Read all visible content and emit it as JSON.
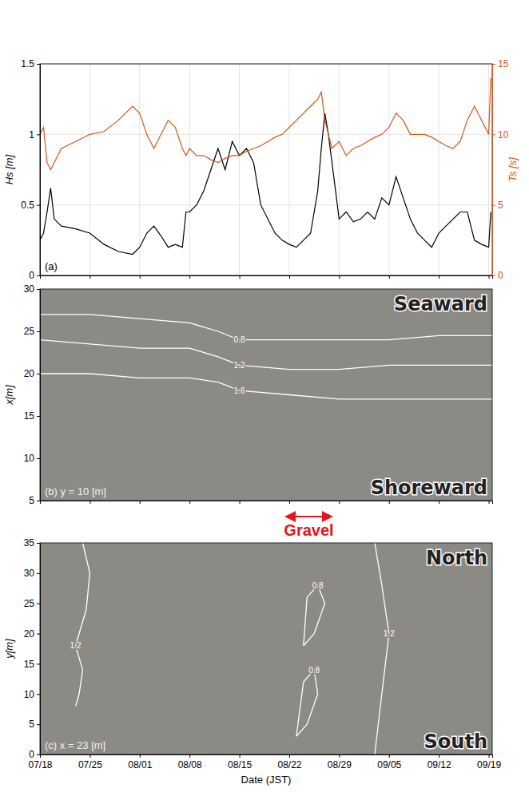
{
  "chart_data": [
    {
      "type": "line",
      "label": "(a)",
      "ylabel": "Hs [m]",
      "y2label": "Ts [s]",
      "xlim": [
        0,
        63.5
      ],
      "xticks": [
        0,
        7,
        14,
        21,
        28,
        35,
        42,
        49,
        56,
        63
      ],
      "ylim": [
        0,
        1.5
      ],
      "yticks": [
        0,
        0.5,
        1,
        1.5
      ],
      "y2lim": [
        0,
        15
      ],
      "y2ticks": [
        0,
        5,
        10,
        15
      ],
      "grid": true,
      "tick_labels": "y",
      "x": [
        0,
        0.5,
        1,
        1.5,
        2,
        3,
        5,
        7,
        9,
        11,
        13,
        14,
        15,
        16,
        17,
        18,
        19,
        20,
        20.5,
        21,
        22,
        23,
        24,
        25,
        26,
        27,
        28,
        29,
        30,
        31,
        32,
        33,
        34,
        35,
        36,
        37,
        38,
        39,
        39.5,
        40,
        40.5,
        41,
        42,
        43,
        44,
        45,
        46,
        47,
        48,
        49,
        50,
        51,
        52,
        53,
        54,
        55,
        56,
        57,
        58,
        59,
        60,
        61,
        62,
        63,
        63.3
      ],
      "series": [
        {
          "color": "#000000",
          "axis": "y",
          "values": [
            0.25,
            0.3,
            0.45,
            0.62,
            0.4,
            0.35,
            0.33,
            0.3,
            0.22,
            0.17,
            0.15,
            0.2,
            0.3,
            0.35,
            0.28,
            0.2,
            0.22,
            0.2,
            0.45,
            0.45,
            0.5,
            0.6,
            0.75,
            0.9,
            0.75,
            0.95,
            0.85,
            0.9,
            0.8,
            0.5,
            0.4,
            0.3,
            0.25,
            0.22,
            0.2,
            0.25,
            0.3,
            0.6,
            0.9,
            1.15,
            1.0,
            0.8,
            0.4,
            0.45,
            0.38,
            0.4,
            0.45,
            0.4,
            0.55,
            0.5,
            0.7,
            0.55,
            0.4,
            0.3,
            0.25,
            0.2,
            0.3,
            0.35,
            0.4,
            0.45,
            0.45,
            0.25,
            0.22,
            0.2,
            0.45
          ]
        },
        {
          "color": "#d95319",
          "axis": "y2",
          "values": [
            10,
            10.5,
            8,
            7.5,
            8,
            9,
            9.5,
            10,
            10.2,
            11,
            12,
            11.5,
            10,
            9,
            10,
            11,
            10.5,
            9,
            8.5,
            9,
            8.5,
            8.5,
            8.2,
            8,
            8.3,
            8.5,
            8.5,
            8.8,
            9,
            9.2,
            9.5,
            9.8,
            10,
            10.5,
            11,
            11.5,
            12,
            12.5,
            13,
            11,
            10,
            9,
            9.5,
            8.5,
            9,
            9.2,
            9.5,
            9.8,
            10,
            10.5,
            11.5,
            11,
            10,
            10,
            10,
            9.8,
            9.5,
            9.2,
            9,
            9.5,
            11,
            12,
            11,
            10,
            14
          ]
        }
      ]
    },
    {
      "type": "contour",
      "label": "(b) y = 10 [m]",
      "ylabel": "x[m]",
      "color": "#8c8a85",
      "xlim": [
        0,
        63.5
      ],
      "xticks": [
        0,
        7,
        14,
        21,
        28,
        35,
        42,
        49,
        56,
        63
      ],
      "ylim": [
        5,
        30
      ],
      "yticks": [
        5,
        10,
        15,
        20,
        25,
        30
      ],
      "grid": false,
      "tick_labels": "y",
      "annotations": [
        "Seaward",
        "Shoreward"
      ],
      "span": {
        "text": "Gravel",
        "x": [
          34.5,
          41
        ],
        "color": "#e8141c"
      },
      "series": [
        {
          "name": "0.8",
          "color": "#ffffff",
          "x": [
            0,
            7,
            14,
            21,
            25,
            28,
            35,
            42,
            49,
            56,
            63.5
          ],
          "values": [
            27,
            27,
            26.5,
            26,
            25,
            24,
            24,
            24,
            24,
            24.5,
            24.5
          ]
        },
        {
          "name": "1.2",
          "color": "#ffffff",
          "x": [
            0,
            7,
            14,
            21,
            25,
            28,
            35,
            42,
            49,
            56,
            63.5
          ],
          "values": [
            24,
            23.5,
            23,
            23,
            22,
            21,
            20.5,
            20.5,
            21,
            21,
            21
          ]
        },
        {
          "name": "1.6",
          "color": "#ffffff",
          "x": [
            0,
            7,
            14,
            21,
            25,
            28,
            35,
            42,
            49,
            56,
            63.5
          ],
          "values": [
            20,
            20,
            19.5,
            19.5,
            19,
            18,
            17.5,
            17,
            17,
            17,
            17
          ]
        }
      ]
    },
    {
      "type": "contour",
      "label": "(c) x = 23 [m]",
      "ylabel": "y[m]",
      "xlabel": "Date (JST)",
      "color": "#8c8a85",
      "xlim": [
        0,
        63.5
      ],
      "xticks": [
        {
          "value": 0,
          "label": "07/18"
        },
        {
          "value": 7,
          "label": "07/25"
        },
        {
          "value": 14,
          "label": "08/01"
        },
        {
          "value": 21,
          "label": "08/08"
        },
        {
          "value": 28,
          "label": "08/15"
        },
        {
          "value": 35,
          "label": "08/22"
        },
        {
          "value": 42,
          "label": "08/29"
        },
        {
          "value": 49,
          "label": "09/05"
        },
        {
          "value": 56,
          "label": "09/12"
        },
        {
          "value": 63,
          "label": "09/19"
        }
      ],
      "ylim": [
        0,
        35
      ],
      "yticks": [
        0,
        5,
        10,
        15,
        20,
        25,
        30,
        35
      ],
      "grid": false,
      "tick_labels": true,
      "annotations": [
        "North",
        "South"
      ],
      "series": [
        {
          "name": "1.2",
          "color": "#ffffff",
          "x": [
            5,
            5.5,
            6,
            5,
            6.5,
            7,
            6
          ],
          "values": [
            8,
            10,
            14,
            18,
            24,
            30,
            35
          ]
        },
        {
          "name": "1.2",
          "color": "#ffffff",
          "x": [
            47,
            48,
            49,
            48,
            47
          ],
          "values": [
            0,
            10,
            20,
            28,
            35
          ]
        },
        {
          "name": "0.8",
          "color": "#ffffff",
          "x": [
            36,
            37.5,
            39,
            38.5,
            37,
            36
          ],
          "values": [
            3,
            5,
            10,
            14,
            12,
            3
          ]
        },
        {
          "name": "0.8",
          "color": "#ffffff",
          "x": [
            37,
            38.5,
            40,
            39,
            37.5,
            37
          ],
          "values": [
            18,
            20,
            25,
            28,
            26,
            18
          ]
        }
      ]
    }
  ]
}
